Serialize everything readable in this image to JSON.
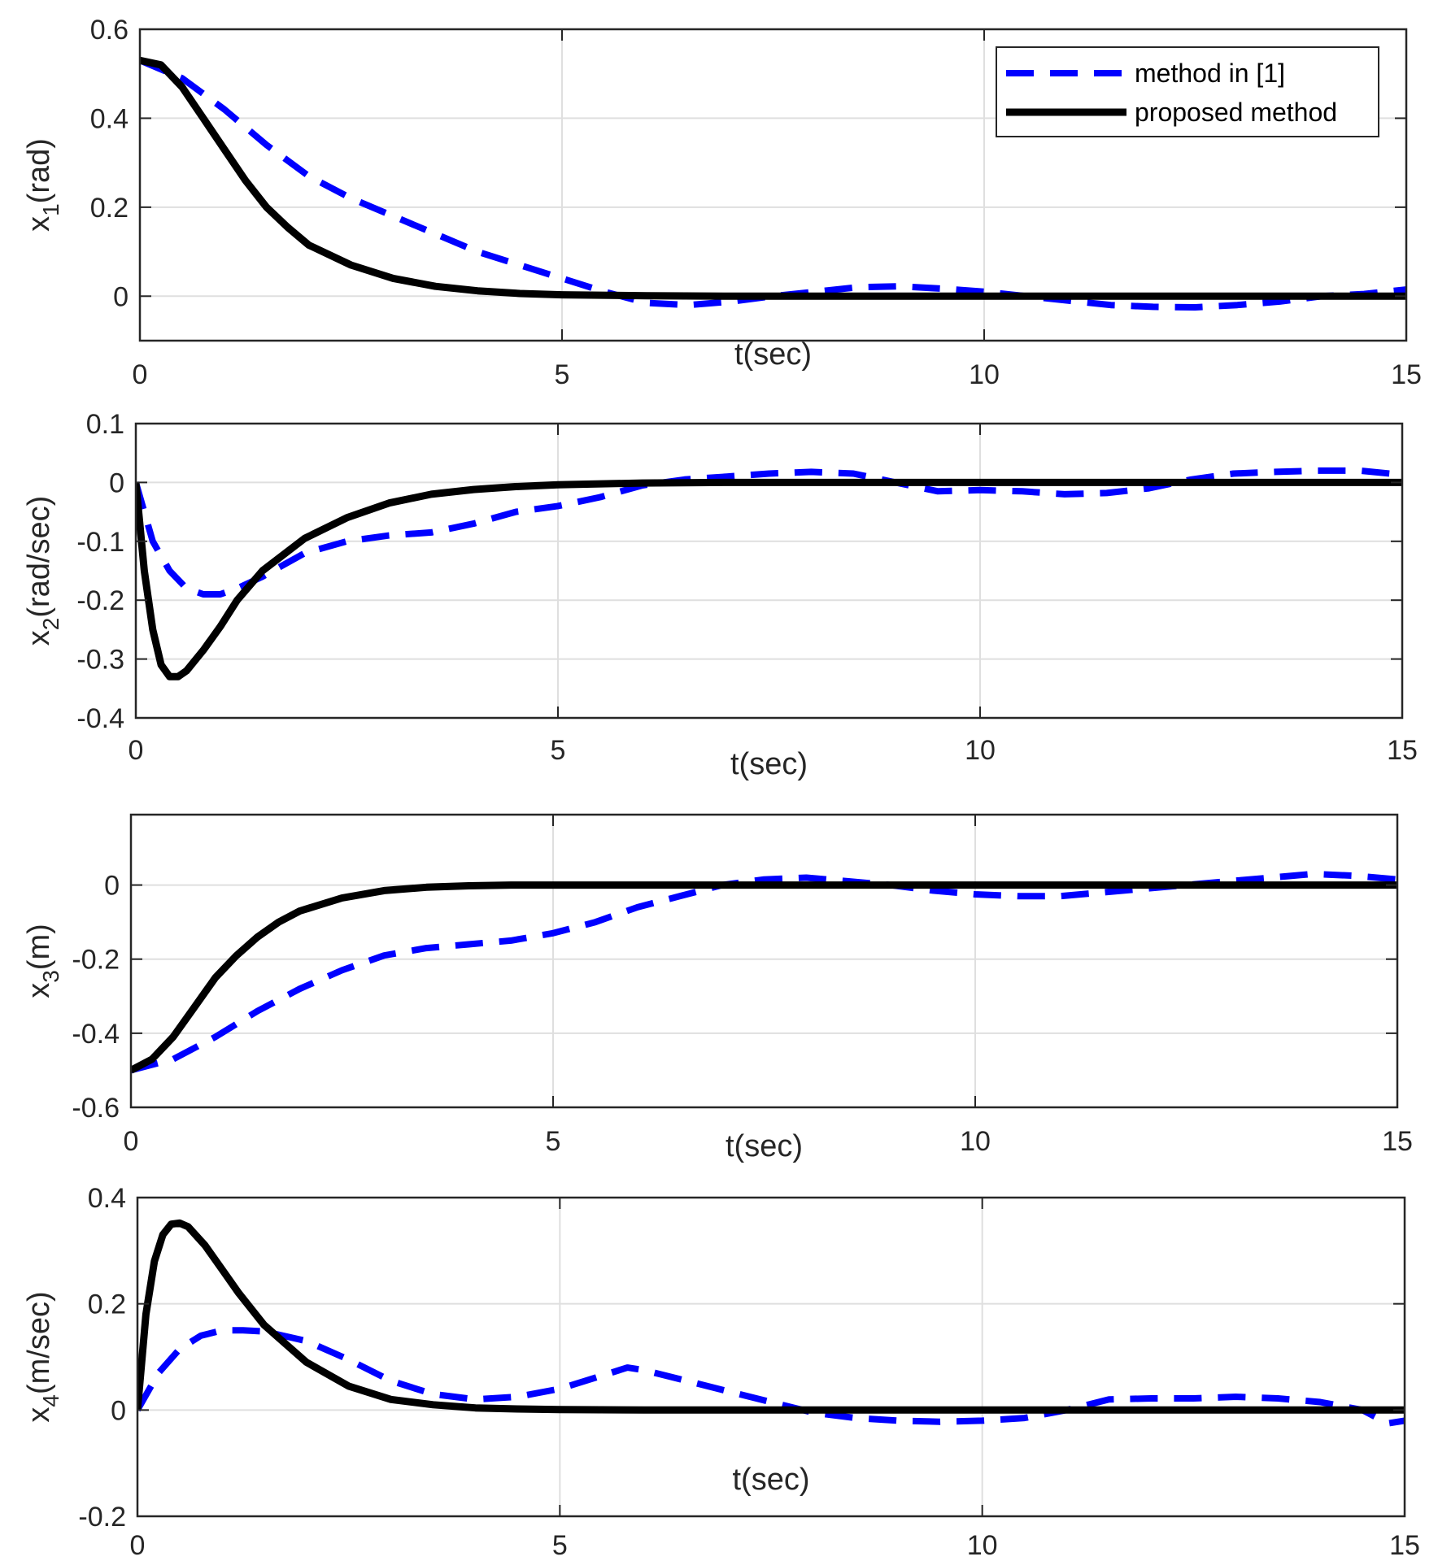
{
  "chart_data": [
    {
      "type": "line",
      "ylabel_base": "x",
      "ylabel_sub": "1",
      "ylabel_unit": "(rad)",
      "xlabel": "t(sec)",
      "xlim": [
        0,
        15
      ],
      "ylim": [
        -0.1,
        0.6
      ],
      "xticks": [
        "0",
        "5",
        "10",
        "15"
      ],
      "xtick_values": [
        0,
        5,
        10,
        15
      ],
      "yticks": [
        "0",
        "0.2",
        "0.4",
        "0.6"
      ],
      "ytick_values": [
        0,
        0.2,
        0.4,
        0.6
      ],
      "grid": true,
      "legend_position": "top-right",
      "series": [
        {
          "name": "method in [1]",
          "style": "dashed",
          "color": "#0000FF",
          "x": [
            0,
            0.5,
            1,
            1.5,
            2,
            2.5,
            3,
            3.5,
            4,
            4.5,
            5,
            5.5,
            6,
            6.5,
            7,
            7.5,
            8,
            8.5,
            9,
            9.5,
            10,
            10.5,
            11,
            11.5,
            12,
            12.5,
            13,
            13.5,
            14,
            14.5,
            15
          ],
          "y": [
            0.53,
            0.49,
            0.42,
            0.34,
            0.27,
            0.22,
            0.18,
            0.14,
            0.1,
            0.07,
            0.04,
            0.01,
            -0.015,
            -0.02,
            -0.012,
            0.0,
            0.01,
            0.02,
            0.022,
            0.017,
            0.01,
            0.0,
            -0.01,
            -0.02,
            -0.024,
            -0.025,
            -0.02,
            -0.012,
            0.0,
            0.005,
            0.015
          ]
        },
        {
          "name": "proposed method",
          "style": "solid",
          "color": "#000000",
          "x": [
            0,
            0.25,
            0.5,
            0.75,
            1,
            1.25,
            1.5,
            1.75,
            2,
            2.5,
            3,
            3.5,
            4,
            4.5,
            5,
            6,
            7,
            8,
            9,
            10,
            11,
            12,
            13,
            14,
            15
          ],
          "y": [
            0.53,
            0.52,
            0.47,
            0.4,
            0.33,
            0.26,
            0.2,
            0.155,
            0.115,
            0.07,
            0.04,
            0.022,
            0.012,
            0.006,
            0.003,
            0.001,
            0,
            0,
            0,
            0,
            0,
            0,
            0,
            0,
            0
          ]
        }
      ]
    },
    {
      "type": "line",
      "ylabel_base": "x",
      "ylabel_sub": "2",
      "ylabel_unit": "(rad/sec)",
      "xlabel": "t(sec)",
      "xlim": [
        0,
        15
      ],
      "ylim": [
        -0.4,
        0.1
      ],
      "xticks": [
        "0",
        "5",
        "10",
        "15"
      ],
      "xtick_values": [
        0,
        5,
        10,
        15
      ],
      "yticks": [
        "-0.4",
        "-0.3",
        "-0.2",
        "-0.1",
        "0",
        "0.1"
      ],
      "ytick_values": [
        -0.4,
        -0.3,
        -0.2,
        -0.1,
        0,
        0.1
      ],
      "grid": true,
      "series": [
        {
          "name": "method in [1]",
          "style": "dashed",
          "color": "#0000FF",
          "x": [
            0,
            0.2,
            0.4,
            0.6,
            0.8,
            1.0,
            1.2,
            1.5,
            2,
            2.5,
            3,
            3.5,
            4,
            4.5,
            5,
            5.5,
            6,
            6.5,
            7,
            7.5,
            8,
            8.5,
            9,
            9.5,
            10,
            10.5,
            11,
            11.5,
            12,
            12.5,
            13,
            13.5,
            14,
            14.5,
            15
          ],
          "y": [
            0,
            -0.1,
            -0.15,
            -0.18,
            -0.19,
            -0.19,
            -0.18,
            -0.16,
            -0.12,
            -0.1,
            -0.09,
            -0.085,
            -0.07,
            -0.05,
            -0.04,
            -0.025,
            -0.005,
            0.005,
            0.01,
            0.015,
            0.018,
            0.015,
            0.0,
            -0.015,
            -0.013,
            -0.015,
            -0.02,
            -0.018,
            -0.01,
            0.005,
            0.015,
            0.018,
            0.02,
            0.02,
            0.013
          ]
        },
        {
          "name": "proposed method",
          "style": "solid",
          "color": "#000000",
          "x": [
            0,
            0.1,
            0.2,
            0.3,
            0.4,
            0.5,
            0.6,
            0.8,
            1.0,
            1.2,
            1.5,
            2,
            2.5,
            3,
            3.5,
            4,
            4.5,
            5,
            6,
            7,
            8,
            9,
            10,
            11,
            12,
            13,
            14,
            15
          ],
          "y": [
            0,
            -0.15,
            -0.25,
            -0.31,
            -0.33,
            -0.33,
            -0.32,
            -0.285,
            -0.245,
            -0.2,
            -0.15,
            -0.095,
            -0.06,
            -0.035,
            -0.02,
            -0.012,
            -0.007,
            -0.004,
            -0.001,
            0,
            0,
            0,
            0,
            0,
            0,
            0,
            0,
            0
          ]
        }
      ]
    },
    {
      "type": "line",
      "ylabel_base": "x",
      "ylabel_sub": "3",
      "ylabel_unit": "(m)",
      "xlabel": "t(sec)",
      "xlim": [
        0,
        15
      ],
      "ylim": [
        -0.6,
        0.19
      ],
      "xticks": [
        "0",
        "5",
        "10",
        "15"
      ],
      "xtick_values": [
        0,
        5,
        10,
        15
      ],
      "yticks": [
        "-0.6",
        "-0.4",
        "-0.2",
        "0"
      ],
      "ytick_values": [
        -0.6,
        -0.4,
        -0.2,
        0
      ],
      "grid": true,
      "series": [
        {
          "name": "method in [1]",
          "style": "dashed",
          "color": "#0000FF",
          "x": [
            0,
            0.5,
            1,
            1.5,
            2,
            2.5,
            3,
            3.5,
            4,
            4.5,
            5,
            5.5,
            6,
            6.5,
            7,
            7.5,
            8,
            8.5,
            9,
            9.5,
            10,
            10.5,
            11,
            11.5,
            12,
            12.5,
            13,
            13.5,
            14,
            14.5,
            15
          ],
          "y": [
            -0.5,
            -0.47,
            -0.41,
            -0.34,
            -0.28,
            -0.23,
            -0.19,
            -0.17,
            -0.16,
            -0.15,
            -0.13,
            -0.1,
            -0.06,
            -0.03,
            0.0,
            0.015,
            0.02,
            0.01,
            0.0,
            -0.015,
            -0.025,
            -0.03,
            -0.03,
            -0.02,
            -0.01,
            0.0,
            0.01,
            0.02,
            0.03,
            0.025,
            0.015
          ]
        },
        {
          "name": "proposed method",
          "style": "solid",
          "color": "#000000",
          "x": [
            0,
            0.25,
            0.5,
            0.75,
            1,
            1.25,
            1.5,
            1.75,
            2,
            2.5,
            3,
            3.5,
            4,
            4.5,
            5,
            6,
            7,
            8,
            9,
            10,
            11,
            12,
            13,
            14,
            15
          ],
          "y": [
            -0.5,
            -0.47,
            -0.41,
            -0.33,
            -0.25,
            -0.19,
            -0.14,
            -0.1,
            -0.07,
            -0.035,
            -0.015,
            -0.006,
            -0.002,
            0,
            0,
            0,
            0,
            0,
            0,
            0,
            0,
            0,
            0,
            0,
            0
          ]
        }
      ]
    },
    {
      "type": "line",
      "ylabel_base": "x",
      "ylabel_sub": "4",
      "ylabel_unit": "(m/sec)",
      "xlabel": "t(sec)",
      "xlim": [
        0,
        15
      ],
      "ylim": [
        -0.2,
        0.4
      ],
      "xticks": [
        "0",
        "5",
        "10",
        "15"
      ],
      "xtick_values": [
        0,
        5,
        10,
        15
      ],
      "yticks": [
        "-0.2",
        "0",
        "0.2",
        "0.4"
      ],
      "ytick_values": [
        -0.2,
        0,
        0.2,
        0.4
      ],
      "grid": true,
      "series": [
        {
          "name": "method in [1]",
          "style": "dashed",
          "color": "#0000FF",
          "x": [
            0,
            0.25,
            0.5,
            0.75,
            1,
            1.25,
            1.5,
            2,
            2.5,
            3,
            3.5,
            4,
            4.5,
            5,
            5.5,
            5.8,
            6,
            6.5,
            7,
            7.5,
            8,
            8.5,
            9,
            9.5,
            10,
            10.5,
            11,
            11.5,
            12,
            12.5,
            13,
            13.5,
            14,
            14.5,
            14.8,
            15
          ],
          "y": [
            0,
            0.07,
            0.115,
            0.14,
            0.15,
            0.15,
            0.148,
            0.13,
            0.095,
            0.055,
            0.03,
            0.02,
            0.025,
            0.04,
            0.065,
            0.08,
            0.075,
            0.055,
            0.035,
            0.015,
            -0.005,
            -0.015,
            -0.02,
            -0.022,
            -0.02,
            -0.015,
            0.0,
            0.02,
            0.022,
            0.022,
            0.025,
            0.022,
            0.015,
            0.0,
            -0.025,
            -0.02
          ]
        },
        {
          "name": "proposed method",
          "style": "solid",
          "color": "#000000",
          "x": [
            0,
            0.1,
            0.2,
            0.3,
            0.4,
            0.5,
            0.6,
            0.8,
            1.0,
            1.2,
            1.5,
            2,
            2.5,
            3,
            3.5,
            4,
            4.5,
            5,
            6,
            7,
            8,
            9,
            10,
            11,
            12,
            13,
            14,
            15
          ],
          "y": [
            0,
            0.18,
            0.28,
            0.33,
            0.35,
            0.352,
            0.345,
            0.31,
            0.265,
            0.22,
            0.16,
            0.09,
            0.045,
            0.02,
            0.01,
            0.004,
            0.002,
            0.001,
            0,
            0,
            0,
            0,
            0,
            0,
            0,
            0,
            0,
            0
          ]
        }
      ]
    }
  ]
}
